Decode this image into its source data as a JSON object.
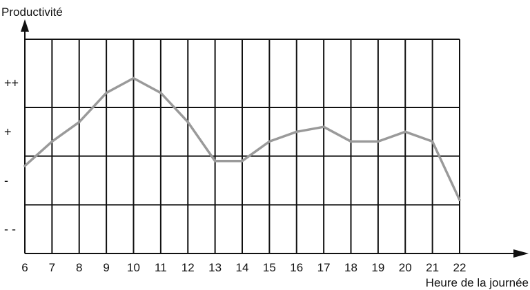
{
  "chart_data": {
    "type": "line",
    "title": "",
    "ylabel": "Productivité",
    "xlabel": "Heure de la journée",
    "x": [
      6,
      7,
      8,
      9,
      10,
      11,
      12,
      13,
      14,
      15,
      16,
      17,
      18,
      19,
      20,
      21,
      22
    ],
    "x_tick_labels": [
      "6",
      "7",
      "8",
      "9",
      "10",
      "11",
      "12",
      "13",
      "14",
      "15",
      "16",
      "17",
      "18",
      "19",
      "20",
      "21",
      "22"
    ],
    "y_levels": [
      "- -",
      "-",
      "+",
      "++"
    ],
    "y_note": "Y values are on a qualitative scale: 1 = '- -', 2 = '-', 3 = '+', 4 = '++'; the plot spans 0.5 to 4.9.",
    "ylim": [
      0.5,
      4.9
    ],
    "xlim": [
      6,
      22
    ],
    "series": [
      {
        "values": [
          2.3,
          2.8,
          3.2,
          3.8,
          4.1,
          3.8,
          3.2,
          2.4,
          2.4,
          2.8,
          3.0,
          3.1,
          2.8,
          2.8,
          3.0,
          2.8,
          1.6
        ]
      }
    ],
    "grid": true,
    "legend": "none",
    "line_color": "#9a9a9a",
    "grid_color": "#111111"
  }
}
